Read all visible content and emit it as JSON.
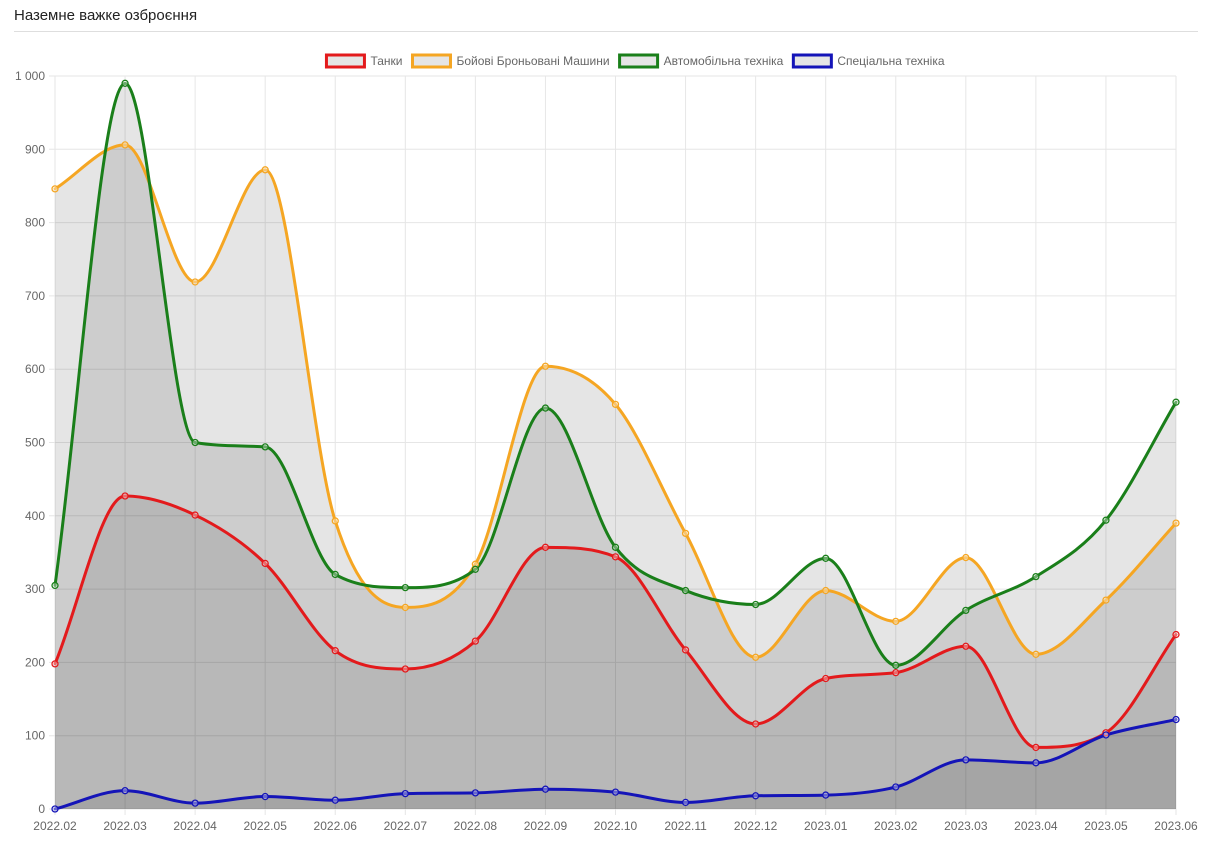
{
  "panel": {
    "title": "Наземне важке озброєння"
  },
  "chart_data": {
    "type": "line",
    "x": [
      "2022.02",
      "2022.03",
      "2022.04",
      "2022.05",
      "2022.06",
      "2022.07",
      "2022.08",
      "2022.09",
      "2022.10",
      "2022.11",
      "2022.12",
      "2023.01",
      "2023.02",
      "2023.03",
      "2023.04",
      "2023.05",
      "2023.06"
    ],
    "ylim": [
      0,
      1000
    ],
    "yticks": [
      {
        "value": 0,
        "label": "0"
      },
      {
        "value": 100,
        "label": "100"
      },
      {
        "value": 200,
        "label": "200"
      },
      {
        "value": 300,
        "label": "300"
      },
      {
        "value": 400,
        "label": "400"
      },
      {
        "value": 500,
        "label": "500"
      },
      {
        "value": 600,
        "label": "600"
      },
      {
        "value": 700,
        "label": "700"
      },
      {
        "value": 800,
        "label": "800"
      },
      {
        "value": 900,
        "label": "900"
      },
      {
        "value": 1000,
        "label": "1 000"
      }
    ],
    "grid": true,
    "fill": true,
    "legend_position": "top",
    "series": [
      {
        "name": "Танки",
        "color": "#e31a1c",
        "fill": "rgba(0,0,0,0.1)",
        "values": [
          198,
          427,
          401,
          335,
          216,
          191,
          229,
          357,
          344,
          217,
          116,
          178,
          186,
          222,
          84,
          104,
          238
        ]
      },
      {
        "name": "Бойові Броньовані Машини",
        "color": "#f5a623",
        "fill": "rgba(0,0,0,0.1)",
        "values": [
          846,
          906,
          719,
          872,
          393,
          275,
          334,
          604,
          552,
          376,
          207,
          298,
          256,
          343,
          211,
          285,
          390
        ]
      },
      {
        "name": "Автомобільна техніка",
        "color": "#1a7f1a",
        "fill": "rgba(0,0,0,0.1)",
        "values": [
          305,
          990,
          500,
          494,
          320,
          302,
          327,
          547,
          357,
          298,
          279,
          342,
          196,
          271,
          317,
          394,
          555
        ]
      },
      {
        "name": "Спеціальна техніка",
        "color": "#1414b8",
        "fill": "rgba(0,0,0,0.1)",
        "values": [
          0,
          25,
          8,
          17,
          12,
          21,
          22,
          27,
          23,
          9,
          18,
          19,
          30,
          67,
          63,
          101,
          122
        ]
      }
    ]
  }
}
